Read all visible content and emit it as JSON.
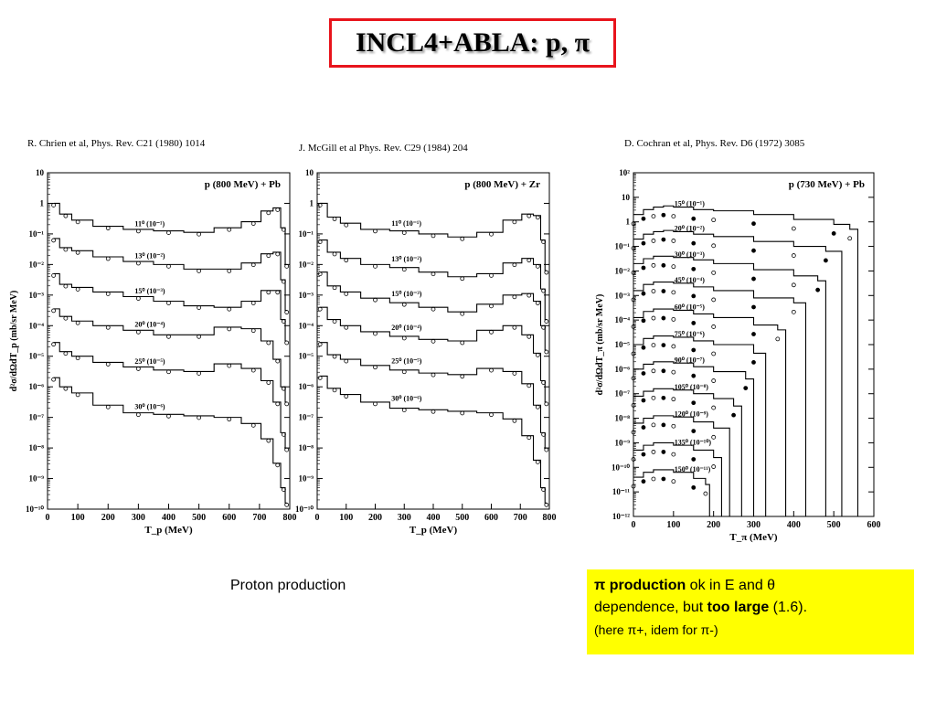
{
  "slide": {
    "title": "INCL4+ABLA: p, π",
    "references": {
      "left": "R. Chrien et al, Phys. Rev. C21 (1980) 1014",
      "middle": "J. McGill et al Phys. Rev. C29 (1984) 204",
      "right": "D. Cochran et al, Phys. Rev. D6 (1972) 3085"
    },
    "caption": "Proton production",
    "note": {
      "line1_bold": "π production",
      "line1_rest": " ok in E and θ",
      "line2_start": "dependence, but ",
      "line2_bold": "too large",
      "line2_rest": " (1.6).",
      "line3": "(here π+, idem for π-)"
    },
    "colors": {
      "title_border": "#e8141c",
      "note_background": "#ffff00"
    }
  },
  "chart_data": [
    {
      "type": "line",
      "plot": "left",
      "title": "p (800 MeV) + Pb",
      "xlabel": "T_p (MeV)",
      "ylabel": "d²σ/dΩdT_p (mb/sr MeV)",
      "xlim": [
        0,
        800
      ],
      "ylim_exp": [
        -10,
        1
      ],
      "x_ticks": [
        0,
        100,
        200,
        300,
        400,
        500,
        600,
        700,
        800
      ],
      "y_ticks": [
        "10",
        "1",
        "10⁻¹",
        "10⁻²",
        "10⁻³",
        "10⁻⁴",
        "10⁻⁵",
        "10⁻⁶",
        "10⁻⁷",
        "10⁻⁸",
        "10⁻⁹",
        "10⁻¹⁰"
      ],
      "series": [
        {
          "name": "11⁰ (10⁻¹)",
          "x": [
            20,
            60,
            100,
            200,
            300,
            400,
            500,
            600,
            680,
            730,
            760,
            780,
            790
          ],
          "log10_y": [
            0.0,
            -0.35,
            -0.55,
            -0.75,
            -0.85,
            -0.9,
            -0.95,
            -0.8,
            -0.6,
            -0.25,
            -0.15,
            -0.8,
            -2.0
          ]
        },
        {
          "name": "13⁰ (10⁻²)",
          "x": [
            20,
            60,
            100,
            200,
            300,
            400,
            500,
            600,
            680,
            730,
            760,
            780,
            790
          ],
          "log10_y": [
            -1.15,
            -1.45,
            -1.55,
            -1.75,
            -1.9,
            -2.0,
            -2.15,
            -2.15,
            -1.95,
            -1.65,
            -1.6,
            -2.5,
            -3.5
          ]
        },
        {
          "name": "15⁰ (10⁻³)",
          "x": [
            20,
            60,
            100,
            200,
            300,
            400,
            500,
            600,
            680,
            730,
            760,
            780,
            790
          ],
          "log10_y": [
            -2.3,
            -2.65,
            -2.75,
            -2.9,
            -3.05,
            -3.2,
            -3.35,
            -3.4,
            -3.2,
            -2.85,
            -2.85,
            -3.8,
            -4.5
          ]
        },
        {
          "name": "20⁰ (10⁻⁴)",
          "x": [
            20,
            60,
            100,
            200,
            300,
            400,
            500,
            600,
            680,
            730,
            760,
            780,
            790
          ],
          "log10_y": [
            -3.45,
            -3.7,
            -3.85,
            -4.0,
            -4.15,
            -4.3,
            -4.3,
            -4.05,
            -4.1,
            -4.5,
            -5.1,
            -6.0,
            -6.5
          ]
        },
        {
          "name": "25⁰ (10⁻⁵)",
          "x": [
            20,
            60,
            100,
            200,
            300,
            400,
            500,
            600,
            680,
            730,
            760,
            780,
            790
          ],
          "log10_y": [
            -4.55,
            -4.85,
            -5.0,
            -5.2,
            -5.35,
            -5.45,
            -5.5,
            -5.25,
            -5.4,
            -5.8,
            -6.5,
            -7.5,
            -8.0
          ]
        },
        {
          "name": "30⁰ (10⁻⁶)",
          "x": [
            20,
            60,
            100,
            200,
            300,
            400,
            500,
            600,
            680,
            730,
            760,
            780,
            790
          ],
          "log10_y": [
            -5.7,
            -6.0,
            -6.2,
            -6.6,
            -6.85,
            -6.9,
            -6.95,
            -7.0,
            -7.2,
            -7.7,
            -8.5,
            -9.3,
            -9.8
          ]
        }
      ]
    },
    {
      "type": "line",
      "plot": "middle",
      "title": "p (800 MeV) + Zr",
      "xlabel": "T_p (MeV)",
      "ylabel": "",
      "xlim": [
        0,
        800
      ],
      "ylim_exp": [
        -10,
        1
      ],
      "x_ticks": [
        0,
        100,
        200,
        300,
        400,
        500,
        600,
        700,
        800
      ],
      "y_ticks": [
        "10",
        "1",
        "10⁻¹",
        "10⁻²",
        "10⁻³",
        "10⁻⁴",
        "10⁻⁵",
        "10⁻⁶",
        "10⁻⁷",
        "10⁻⁸",
        "10⁻⁹",
        "10⁻¹⁰"
      ],
      "series": [
        {
          "name": "11⁰ (10⁻¹)",
          "x": [
            10,
            60,
            100,
            200,
            300,
            400,
            500,
            600,
            680,
            730,
            760,
            780,
            790
          ],
          "log10_y": [
            0.0,
            -0.45,
            -0.65,
            -0.85,
            -0.9,
            -1.0,
            -1.1,
            -0.95,
            -0.55,
            -0.35,
            -0.4,
            -1.2,
            -2.2
          ]
        },
        {
          "name": "13⁰ (10⁻²)",
          "x": [
            10,
            60,
            100,
            200,
            300,
            400,
            500,
            600,
            680,
            730,
            760,
            780,
            790
          ],
          "log10_y": [
            -1.2,
            -1.6,
            -1.8,
            -2.0,
            -2.1,
            -2.25,
            -2.4,
            -2.3,
            -1.95,
            -1.8,
            -2.0,
            -2.8,
            -3.8
          ]
        },
        {
          "name": "15⁰ (10⁻³)",
          "x": [
            10,
            60,
            100,
            200,
            300,
            400,
            500,
            600,
            680,
            730,
            760,
            780,
            790
          ],
          "log10_y": [
            -2.25,
            -2.7,
            -2.9,
            -3.1,
            -3.25,
            -3.4,
            -3.55,
            -3.3,
            -3.0,
            -2.95,
            -3.2,
            -4.0,
            -4.8
          ]
        },
        {
          "name": "20⁰ (10⁻⁴)",
          "x": [
            10,
            60,
            100,
            200,
            300,
            400,
            500,
            600,
            680,
            730,
            760,
            780,
            790
          ],
          "log10_y": [
            -3.4,
            -3.8,
            -4.0,
            -4.2,
            -4.35,
            -4.45,
            -4.5,
            -4.15,
            -4.0,
            -4.3,
            -4.9,
            -5.8,
            -6.5
          ]
        },
        {
          "name": "25⁰ (10⁻⁵)",
          "x": [
            10,
            60,
            100,
            200,
            300,
            400,
            500,
            600,
            680,
            730,
            760,
            780,
            790
          ],
          "log10_y": [
            -4.55,
            -4.95,
            -5.1,
            -5.3,
            -5.45,
            -5.55,
            -5.6,
            -5.4,
            -5.5,
            -5.9,
            -6.6,
            -7.5,
            -8.0
          ]
        },
        {
          "name": "30⁰ (10⁻⁶)",
          "x": [
            10,
            60,
            100,
            200,
            300,
            400,
            500,
            600,
            680,
            730,
            760,
            780,
            790
          ],
          "log10_y": [
            -5.65,
            -6.05,
            -6.25,
            -6.5,
            -6.7,
            -6.75,
            -6.8,
            -6.85,
            -7.05,
            -7.6,
            -8.4,
            -9.3,
            -9.8
          ]
        }
      ]
    },
    {
      "type": "line",
      "plot": "right",
      "title": "p (730 MeV) + Pb",
      "xlabel": "T_π (MeV)",
      "ylabel": "d²σ/dΩdT_π (mb/sr MeV)",
      "xlim": [
        0,
        600
      ],
      "ylim_exp": [
        -12,
        2
      ],
      "x_ticks": [
        0,
        100,
        200,
        300,
        400,
        500,
        600
      ],
      "y_ticks": [
        "10²",
        "10",
        "1",
        "10⁻¹",
        "10⁻²",
        "10⁻³",
        "10⁻⁴",
        "10⁻⁵",
        "10⁻⁶",
        "10⁻⁷",
        "10⁻⁸",
        "10⁻⁹",
        "10⁻¹⁰",
        "10⁻¹¹",
        "10⁻¹²"
      ],
      "series": [
        {
          "name": "15⁰ (10⁻¹)",
          "x": [
            0,
            25,
            50,
            75,
            100,
            150,
            200,
            300,
            400,
            500,
            540,
            560
          ],
          "log10_y": [
            0.3,
            0.5,
            0.6,
            0.65,
            0.6,
            0.5,
            0.45,
            0.3,
            0.1,
            -0.1,
            -0.3,
            -12
          ]
        },
        {
          "name": "20⁰ (10⁻²)",
          "x": [
            0,
            25,
            50,
            75,
            100,
            150,
            200,
            300,
            400,
            480,
            520
          ],
          "log10_y": [
            -0.7,
            -0.5,
            -0.4,
            -0.35,
            -0.4,
            -0.5,
            -0.6,
            -0.8,
            -1.0,
            -1.2,
            -12
          ]
        },
        {
          "name": "30⁰ (10⁻³)",
          "x": [
            0,
            25,
            50,
            75,
            100,
            150,
            200,
            300,
            400,
            460,
            480
          ],
          "log10_y": [
            -1.7,
            -1.5,
            -1.4,
            -1.4,
            -1.45,
            -1.55,
            -1.7,
            -1.95,
            -2.2,
            -2.4,
            -12
          ]
        },
        {
          "name": "45⁰ (10⁻⁴)",
          "x": [
            0,
            25,
            50,
            75,
            100,
            150,
            200,
            300,
            400,
            430
          ],
          "log10_y": [
            -2.8,
            -2.55,
            -2.45,
            -2.45,
            -2.5,
            -2.65,
            -2.8,
            -3.1,
            -3.3,
            -12
          ]
        },
        {
          "name": "60⁰ (10⁻⁵)",
          "x": [
            0,
            25,
            50,
            75,
            100,
            150,
            200,
            300,
            360,
            380
          ],
          "log10_y": [
            -3.9,
            -3.65,
            -3.55,
            -3.55,
            -3.6,
            -3.75,
            -3.9,
            -4.2,
            -4.4,
            -12
          ]
        },
        {
          "name": "75⁰ (10⁻⁶)",
          "x": [
            0,
            25,
            50,
            75,
            100,
            150,
            200,
            300,
            330
          ],
          "log10_y": [
            -5.0,
            -4.75,
            -4.65,
            -4.65,
            -4.7,
            -4.85,
            -5.0,
            -5.35,
            -12
          ]
        },
        {
          "name": "90⁰ (10⁻⁷)",
          "x": [
            0,
            25,
            50,
            75,
            100,
            150,
            200,
            280,
            300
          ],
          "log10_y": [
            -6.0,
            -5.8,
            -5.7,
            -5.7,
            -5.75,
            -5.9,
            -6.1,
            -6.4,
            -12
          ]
        },
        {
          "name": "105⁰ (10⁻⁸)",
          "x": [
            0,
            25,
            50,
            75,
            100,
            150,
            200,
            250,
            270
          ],
          "log10_y": [
            -7.1,
            -6.9,
            -6.8,
            -6.8,
            -6.85,
            -7.0,
            -7.2,
            -7.5,
            -12
          ]
        },
        {
          "name": "120⁰ (10⁻⁹)",
          "x": [
            0,
            25,
            50,
            75,
            100,
            150,
            200,
            240
          ],
          "log10_y": [
            -8.2,
            -8.0,
            -7.9,
            -7.9,
            -7.95,
            -8.15,
            -8.4,
            -12
          ]
        },
        {
          "name": "135⁰ (10⁻¹⁰)",
          "x": [
            0,
            25,
            50,
            75,
            100,
            150,
            200,
            220
          ],
          "log10_y": [
            -9.3,
            -9.1,
            -9.0,
            -9.0,
            -9.1,
            -9.3,
            -9.6,
            -12
          ]
        },
        {
          "name": "150⁰ (10⁻¹¹)",
          "x": [
            0,
            25,
            50,
            75,
            100,
            150,
            180,
            190
          ],
          "log10_y": [
            -10.4,
            -10.2,
            -10.1,
            -10.1,
            -10.2,
            -10.45,
            -10.7,
            -12
          ]
        }
      ]
    }
  ]
}
